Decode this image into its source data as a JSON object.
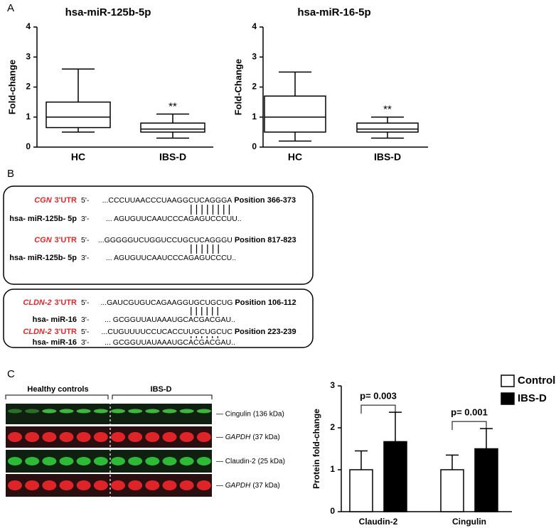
{
  "panels": {
    "a": "A",
    "b": "B",
    "c": "C"
  },
  "chart_data": [
    {
      "type": "box",
      "title": "hsa-miR-125b-5p",
      "y_label": "Fold-change",
      "categories": [
        "HC",
        "IBS-D"
      ],
      "boxes": [
        {
          "min": 0.5,
          "q1": 0.65,
          "median": 1.0,
          "q3": 1.5,
          "max": 2.6
        },
        {
          "min": 0.3,
          "q1": 0.5,
          "median": 0.6,
          "q3": 0.8,
          "max": 1.1
        }
      ],
      "ylim": [
        0,
        4
      ],
      "yticks": [
        0,
        1,
        2,
        3,
        4
      ],
      "color": "#000000",
      "annotation": {
        "text": "**",
        "category": "IBS-D"
      }
    },
    {
      "type": "box",
      "title": "hsa-miR-16-5p",
      "y_label": "Fold-Change",
      "categories": [
        "HC",
        "IBS-D"
      ],
      "boxes": [
        {
          "min": 0.2,
          "q1": 0.5,
          "median": 1.0,
          "q3": 1.7,
          "max": 2.5
        },
        {
          "min": 0.3,
          "q1": 0.5,
          "median": 0.6,
          "q3": 0.8,
          "max": 1.0
        }
      ],
      "ylim": [
        0,
        4
      ],
      "yticks": [
        0,
        1,
        2,
        3,
        4
      ],
      "color": "#000000",
      "annotation": {
        "text": "**",
        "category": "IBS-D"
      }
    },
    {
      "type": "bar",
      "y_label": "Protein fold-change",
      "categories": [
        "Claudin-2",
        "Cingulin"
      ],
      "series": [
        {
          "name": "Control",
          "color": "#ffffff",
          "values": [
            1.0,
            1.0
          ],
          "errors": [
            0.45,
            0.35
          ]
        },
        {
          "name": "IBS-D",
          "color": "#000000",
          "values": [
            1.67,
            1.5
          ],
          "errors": [
            0.7,
            0.48
          ]
        }
      ],
      "ylim": [
        0,
        3
      ],
      "yticks": [
        0,
        1,
        2,
        3
      ],
      "legend": "top-right",
      "annotations": [
        {
          "text": "p= 0.003",
          "category": "Claudin-2"
        },
        {
          "text": "p= 0.001",
          "category": "Cingulin"
        }
      ]
    }
  ],
  "alignments": [
    {
      "group": 0,
      "gene": "CGN",
      "utr": "3'UTR",
      "target_prime": "5'-",
      "target_prefix": "...CCCUUAACCCUAAGG",
      "target_site": "CUCAGGGA",
      "position": "Position 366-373",
      "mirna": "hsa- miR-125b- 5p",
      "mirna_prime": "3'-",
      "mirna_prefix": "... AGUGUUCAAUCCCA",
      "mirna_site": "GAGUCCCU",
      "mirna_suffix": "U.."
    },
    {
      "group": 0,
      "gene": "CGN",
      "utr": "3'UTR",
      "target_prime": "5'-",
      "target_prefix": "...GGGGGUCUGGUCCUG",
      "target_site": "CUCAGGGU",
      "position": "Position 817-823",
      "mirna": "hsa- miR-125b- 5p",
      "mirna_prime": "3'-",
      "mirna_prefix": "... AGUGUUCAAUCCCA",
      "mirna_site": "GAGUCCC",
      "mirna_suffix": "U.."
    },
    {
      "group": 1,
      "gene": "CLDN-2",
      "utr": "3'UTR",
      "target_prime": "5'-",
      "target_prefix": "...GAUCGUGUCAGAAGG",
      "target_site": "UGCUGCUG",
      "position": "Position 106-112",
      "mirna": "hsa- miR-16",
      "mirna_prime": "3'-",
      "mirna_prefix": "... GCGGUUAUAAAUGC",
      "mirna_site": "ACGACGA",
      "mirna_suffix": "U.."
    },
    {
      "group": 1,
      "gene": "CLDN-2",
      "utr": "3'UTR",
      "target_prime": "5'-",
      "target_prefix": "...CUGUUUUCCUCACCU",
      "target_site": "UGCUGCUC",
      "position": "Position 223-239",
      "mirna": "hsa- miR-16",
      "mirna_prime": "3'-",
      "mirna_prefix": "... GCGGUUAUAAAUGC",
      "mirna_site": "ACGACGA",
      "mirna_suffix": "U.."
    }
  ],
  "blot": {
    "groups": [
      "Healthy controls",
      "IBS-D"
    ],
    "bands": [
      {
        "protein": "Cingulin",
        "size": "(136 kDa)",
        "italic": false,
        "color": "#3fbf3f"
      },
      {
        "protein": "GAPDH",
        "size": "(37 kDa)",
        "italic": true,
        "color": "#e8262a"
      },
      {
        "protein": "Claudin-2",
        "size": "(25 kDa)",
        "italic": false,
        "color": "#2fc43a"
      },
      {
        "protein": "GAPDH",
        "size": "(37 kDa)",
        "italic": true,
        "color": "#e8262a"
      }
    ]
  }
}
